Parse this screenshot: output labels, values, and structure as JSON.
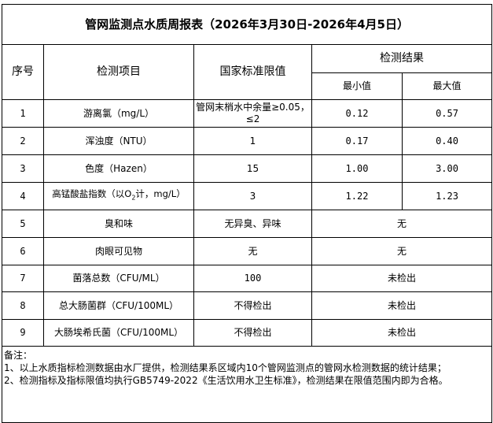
{
  "title": "管网监测点水质周报表（2026年3月30日-2026年4月5日）",
  "headers": {
    "seq": "序号",
    "item": "检测项目",
    "limit": "国家标准限值",
    "result": "检测结果",
    "min": "最小值",
    "max": "最大值"
  },
  "rows": [
    {
      "seq": "1",
      "item": "游离氯（mg/L）",
      "limit": "管网末梢水中余量≥0.05，≤2",
      "min": "0.12",
      "max": "0.57"
    },
    {
      "seq": "2",
      "item": "浑浊度（NTU）",
      "limit": "1",
      "min": "0.17",
      "max": "0.40"
    },
    {
      "seq": "3",
      "item": "色度（Hazen）",
      "limit": "15",
      "min": "1.00",
      "max": "3.00"
    },
    {
      "seq": "4",
      "item_pre": "高锰酸盐指数（以O",
      "item_sub": "2",
      "item_post": "计，mg/L）",
      "limit": "3",
      "min": "1.22",
      "max": "1.23"
    },
    {
      "seq": "5",
      "item": "臭和味",
      "limit": "无异臭、异味",
      "result": "无"
    },
    {
      "seq": "6",
      "item": "肉眼可见物",
      "limit": "无",
      "result": "无"
    },
    {
      "seq": "7",
      "item": "菌落总数（CFU/ML）",
      "limit": "100",
      "result": "未检出"
    },
    {
      "seq": "8",
      "item": "总大肠菌群（CFU/100ML）",
      "limit": "不得检出",
      "result": "未检出"
    },
    {
      "seq": "9",
      "item": "大肠埃希氏菌（CFU/100ML）",
      "limit": "不得检出",
      "result": "未检出"
    }
  ],
  "notes": {
    "label": "备注：",
    "line1": "1、以上水质指标检测数据由水厂提供，检测结果系区域内10个管网监测点的管网水检测数据的统计结果；",
    "line2": "2、检测指标及指标限值均执行GB5749-2022《生活饮用水卫生标准》，检测结果在限值范围内即为合格。"
  }
}
